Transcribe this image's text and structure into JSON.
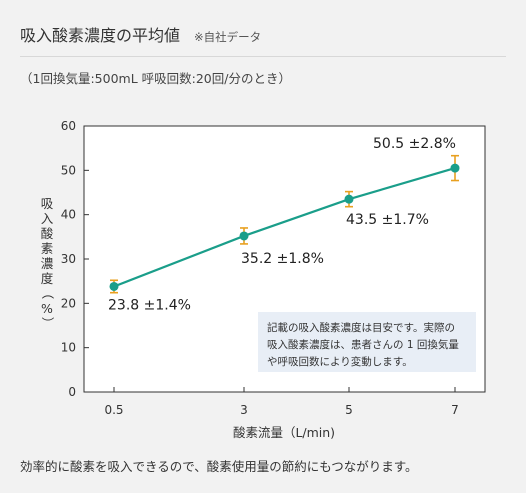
{
  "header": {
    "title": "吸入酸素濃度の平均値",
    "note": "※自社データ",
    "subtitle": "（1回換気量:500mL 呼吸回数:20回/分のとき）"
  },
  "footer": {
    "text": "効率的に酸素を吸入できるので、酸素使用量の節約にもつながります。"
  },
  "chart_data": {
    "type": "line",
    "xlabel": "酸素流量（L/min)",
    "ylabel": [
      "吸",
      "入",
      "酸",
      "素",
      "濃",
      "度",
      "（",
      "%",
      "）"
    ],
    "x": [
      0.5,
      3,
      5,
      7
    ],
    "x_tick_labels": [
      "0.5",
      "3",
      "5",
      "7"
    ],
    "ylim": [
      0,
      60
    ],
    "y_ticks": [
      0,
      10,
      20,
      30,
      40,
      50,
      60
    ],
    "series": [
      {
        "values": [
          23.8,
          35.2,
          43.5,
          50.5
        ],
        "errors": [
          1.4,
          1.8,
          1.7,
          2.8
        ],
        "labels": [
          "23.8 ±1.4%",
          "35.2 ±1.8%",
          "43.5 ±1.7%",
          "50.5 ±2.8%"
        ]
      }
    ],
    "annotation": [
      "記載の吸入酸素濃度は目安です。実際の",
      "吸入酸素濃度は、患者さんの 1 回換気量",
      "や呼吸回数により変動します。"
    ],
    "colors": {
      "line": "#1a9e8a",
      "marker": "#1a9e8a",
      "error_bar": "#e8a020",
      "annotation_bg": "#e8eef6"
    },
    "grid": false
  }
}
